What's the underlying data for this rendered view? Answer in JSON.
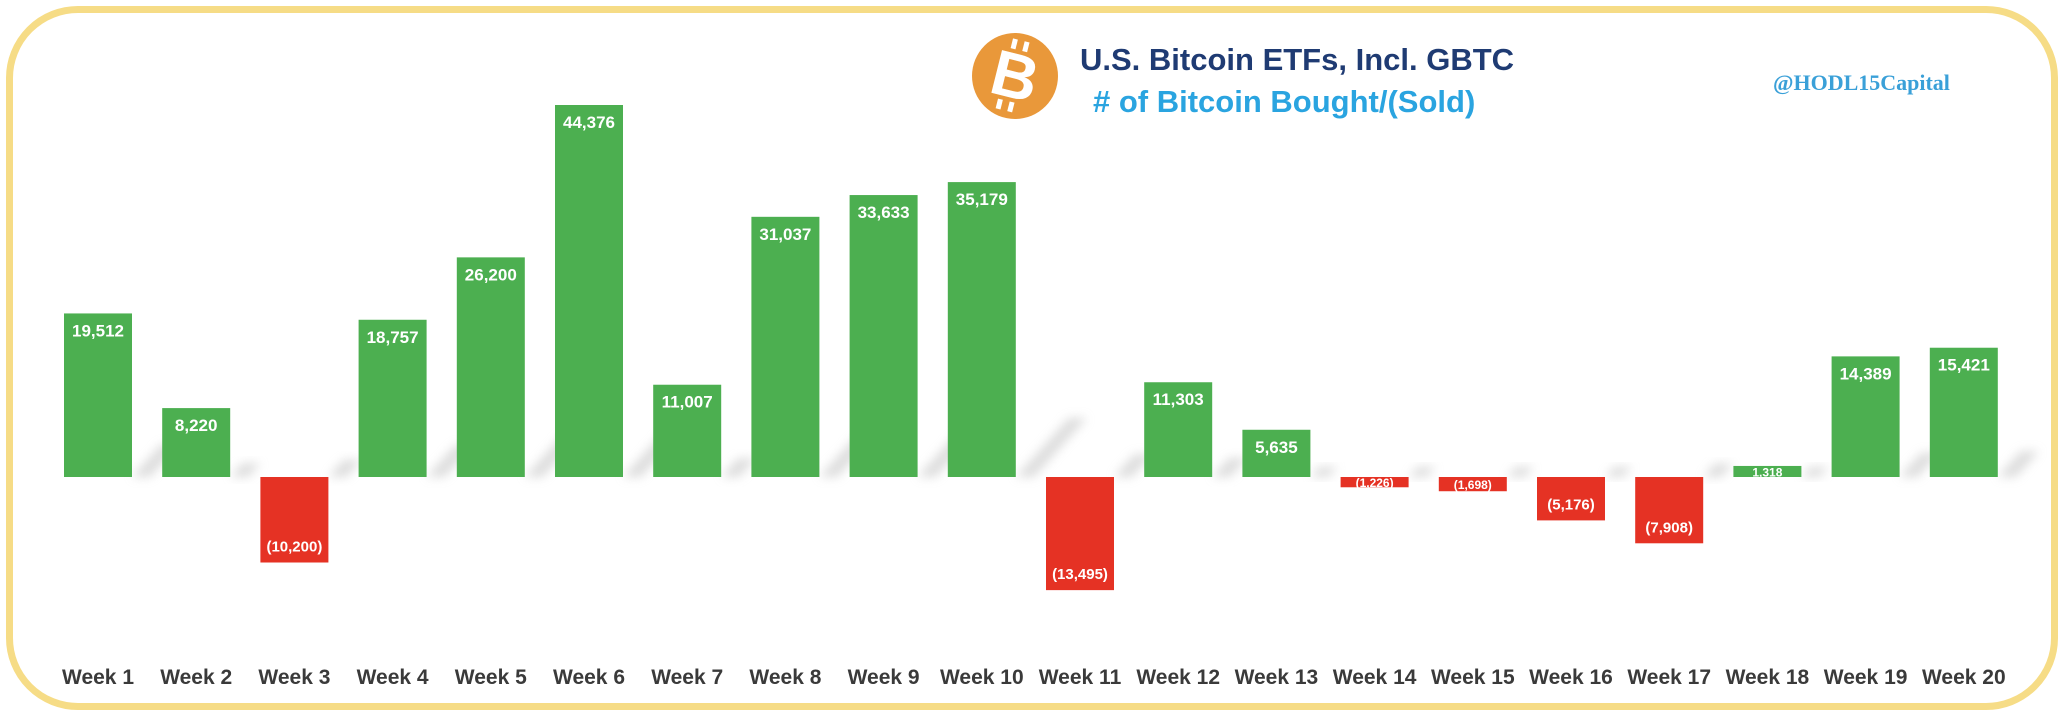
{
  "chart_data": {
    "type": "bar",
    "title": "U.S. Bitcoin ETFs, Incl. GBTC",
    "subtitle": "# of Bitcoin Bought/(Sold)",
    "watermark": "@HODL15Capital",
    "categories": [
      "Week 1",
      "Week 2",
      "Week 3",
      "Week 4",
      "Week 5",
      "Week 6",
      "Week 7",
      "Week 8",
      "Week 9",
      "Week 10",
      "Week 11",
      "Week 12",
      "Week 13",
      "Week 14",
      "Week 15",
      "Week 16",
      "Week 17",
      "Week 18",
      "Week 19",
      "Week 20"
    ],
    "values": [
      19512,
      8220,
      -10200,
      18757,
      26200,
      44376,
      11007,
      31037,
      33633,
      35179,
      -13495,
      11303,
      5635,
      -1226,
      -1698,
      -5176,
      -7908,
      1318,
      14389,
      15421
    ],
    "labels": [
      "19,512",
      "8,220",
      "(10,200)",
      "18,757",
      "26,200",
      "44,376",
      "11,007",
      "31,037",
      "33,633",
      "35,179",
      "(13,495)",
      "11,303",
      "5,635",
      "(1,226)",
      "(1,698)",
      "(5,176)",
      "(7,908)",
      "1,318",
      "14,389",
      "15,421"
    ],
    "ylim": [
      -18000,
      49000
    ],
    "xlabel": "",
    "ylabel": "",
    "grid": false,
    "legend": "none",
    "colors": {
      "positive": "#4caf50",
      "negative": "#e53224",
      "frame": "#f6dc86",
      "logo": "#e9983a"
    }
  }
}
